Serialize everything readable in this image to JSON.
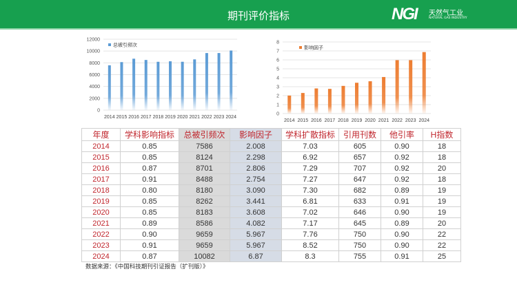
{
  "header": {
    "title": "期刊评价指标",
    "logo": {
      "mark": "NGI",
      "cn": "天然气工业",
      "en": "NATURAL GAS INDUSTRY"
    }
  },
  "colors": {
    "header": "#17a04f",
    "bar1": "#5b9bd5",
    "bar2": "#ed7d31",
    "table_header_text": "#c0262d"
  },
  "chart_data": [
    {
      "type": "bar",
      "legend": "总被引频次",
      "legend_position": "top-left",
      "grid": true,
      "ylim": [
        0,
        12000
      ],
      "yticks": [
        0,
        2000,
        4000,
        6000,
        8000,
        10000,
        12000
      ],
      "categories": [
        "2014",
        "2015",
        "2016",
        "2017",
        "2018",
        "2019",
        "2020",
        "2021",
        "2022",
        "2023",
        "2024"
      ],
      "values": [
        7586,
        8124,
        8701,
        8488,
        8180,
        8262,
        8183,
        8586,
        9659,
        9659,
        10082
      ]
    },
    {
      "type": "bar",
      "legend": "影响因子",
      "legend_position": "top-left",
      "grid": true,
      "ylim": [
        0,
        8
      ],
      "yticks": [
        0,
        1,
        2,
        3,
        4,
        5,
        6,
        7,
        8
      ],
      "categories": [
        "2014",
        "2015",
        "2016",
        "2017",
        "2018",
        "2019",
        "2020",
        "2021",
        "2022",
        "2023",
        "2024"
      ],
      "values": [
        2.008,
        2.298,
        2.806,
        2.754,
        3.09,
        3.441,
        3.608,
        4.082,
        5.967,
        5.967,
        6.87
      ]
    }
  ],
  "table": {
    "headers": [
      "年度",
      "学科影响指标",
      "总被引频次",
      "影响因子",
      "学科扩散指标",
      "引用刊数",
      "他引率",
      "H指数"
    ],
    "rows": [
      [
        "2014",
        "0.85",
        "7586",
        "2.008",
        "7.03",
        "605",
        "0.90",
        "18"
      ],
      [
        "2015",
        "0.85",
        "8124",
        "2.298",
        "6.92",
        "657",
        "0.92",
        "18"
      ],
      [
        "2016",
        "0.87",
        "8701",
        "2.806",
        "7.29",
        "707",
        "0.92",
        "20"
      ],
      [
        "2017",
        "0.91",
        "8488",
        "2.754",
        "7.27",
        "647",
        "0.92",
        "18"
      ],
      [
        "2018",
        "0.80",
        "8180",
        "3.090",
        "7.30",
        "682",
        "0.89",
        "19"
      ],
      [
        "2019",
        "0.85",
        "8262",
        "3.441",
        "6.81",
        "633",
        "0.91",
        "19"
      ],
      [
        "2020",
        "0.85",
        "8183",
        "3.608",
        "7.02",
        "646",
        "0.90",
        "19"
      ],
      [
        "2021",
        "0.89",
        "8586",
        "4.082",
        "7.17",
        "645",
        "0.89",
        "20"
      ],
      [
        "2022",
        "0.90",
        "9659",
        "5.967",
        "7.76",
        "750",
        "0.90",
        "22"
      ],
      [
        "2023",
        "0.91",
        "9659",
        "5.967",
        "8.52",
        "750",
        "0.90",
        "22"
      ],
      [
        "2024",
        "0.87",
        "10082",
        "6.87",
        "8.3",
        "755",
        "0.91",
        "25"
      ]
    ]
  },
  "source": "数据来源：《中国科技期刊引证报告（扩刊版）》"
}
